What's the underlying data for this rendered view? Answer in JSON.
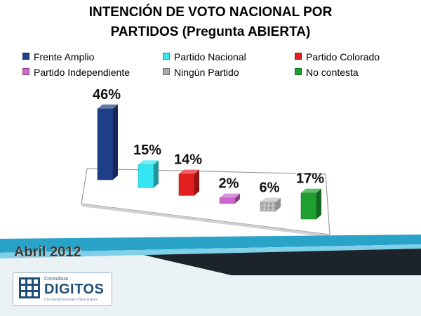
{
  "title": {
    "line1": "INTENCIÓN DE VOTO NACIONAL POR",
    "line2": "PARTIDOS (Pregunta ABIERTA)"
  },
  "footer": {
    "date": "Abril 2012",
    "logo_small": "Consultora",
    "logo_name": "DIGITOS",
    "logo_tagline": "Una Gestión Ferrari y Bent & Asoc."
  },
  "colors": {
    "Frente Amplio": "#1f3f88",
    "Partido Nacional": "#33e6f2",
    "Partido Colorado": "#e41f1f",
    "Partido Independiente": "#cc66cc",
    "Ningún Partido": "#a9a9a9",
    "No contesta": "#1f9f2f",
    "footer_teal": "#2aa3c8",
    "footer_dark": "#222a30"
  },
  "chart_data": {
    "type": "bar",
    "categories": [
      "Frente Amplio",
      "Partido Nacional",
      "Partido Colorado",
      "Partido Independiente",
      "Ningún Partido",
      "No contesta"
    ],
    "values": [
      46,
      15,
      14,
      2,
      6,
      17
    ],
    "data_labels": [
      "46%",
      "15%",
      "14%",
      "2%",
      "6%",
      "17%"
    ],
    "unit": "%",
    "title": "INTENCIÓN DE VOTO NACIONAL POR PARTIDOS (Pregunta ABIERTA)",
    "legend": [
      "Frente Amplio",
      "Partido Nacional",
      "Partido Colorado",
      "Partido Independiente",
      "Ningún Partido",
      "No contesta"
    ],
    "legend_position": "top",
    "style": "3d-perspective",
    "grid": false,
    "ylim": [
      0,
      50
    ]
  }
}
